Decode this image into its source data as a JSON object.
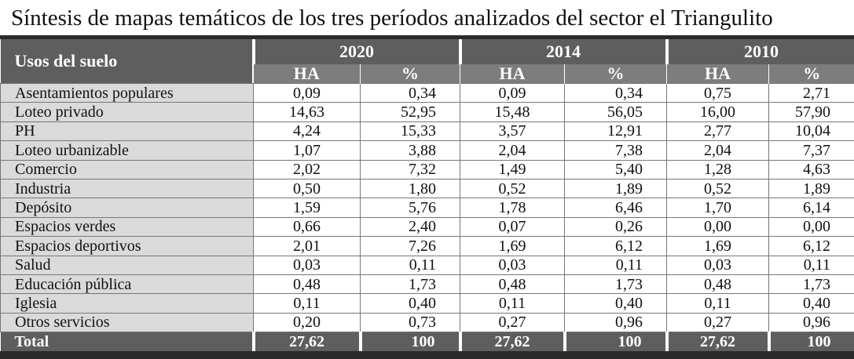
{
  "title": "Síntesis de mapas temáticos de los tres períodos analizados del sector el Triangulito",
  "table": {
    "header": [
      "Usos del suelo",
      "2020",
      "2014",
      "2010"
    ],
    "subheader": [
      "HA",
      "%",
      "HA",
      "%",
      "HA",
      "%"
    ],
    "rows": [
      [
        "Asentamientos populares",
        "0,09",
        "0,34",
        "0,09",
        "0,34",
        "0,75",
        "2,71"
      ],
      [
        "Loteo privado",
        "14,63",
        "52,95",
        "15,48",
        "56,05",
        "16,00",
        "57,90"
      ],
      [
        "PH",
        "4,24",
        "15,33",
        "3,57",
        "12,91",
        "2,77",
        "10,04"
      ],
      [
        "Loteo urbanizable",
        "1,07",
        "3,88",
        "2,04",
        "7,38",
        "2,04",
        "7,37"
      ],
      [
        "Comercio",
        "2,02",
        "7,32",
        "1,49",
        "5,40",
        "1,28",
        "4,63"
      ],
      [
        "Industria",
        "0,50",
        "1,80",
        "0,52",
        "1,89",
        "0,52",
        "1,89"
      ],
      [
        "Depósito",
        "1,59",
        "5,76",
        "1,78",
        "6,46",
        "1,70",
        "6,14"
      ],
      [
        "Espacios verdes",
        "0,66",
        "2,40",
        "0,07",
        "0,26",
        "0,00",
        "0,00"
      ],
      [
        "Espacios deportivos",
        "2,01",
        "7,26",
        "1,69",
        "6,12",
        "1,69",
        "6,12"
      ],
      [
        "Salud",
        "0,03",
        "0,11",
        "0,03",
        "0,11",
        "0,03",
        "0,11"
      ],
      [
        "Educación pública",
        "0,48",
        "1,73",
        "0,48",
        "1,73",
        "0,48",
        "1,73"
      ],
      [
        "Iglesia",
        "0,11",
        "0,40",
        "0,11",
        "0,40",
        "0,11",
        "0,40"
      ],
      [
        "Otros servicios",
        "0,20",
        "0,73",
        "0,27",
        "0,96",
        "0,27",
        "0,96"
      ]
    ],
    "total": [
      "Total",
      "27,62",
      "100",
      "27,62",
      "100",
      "27,62",
      "100"
    ]
  }
}
